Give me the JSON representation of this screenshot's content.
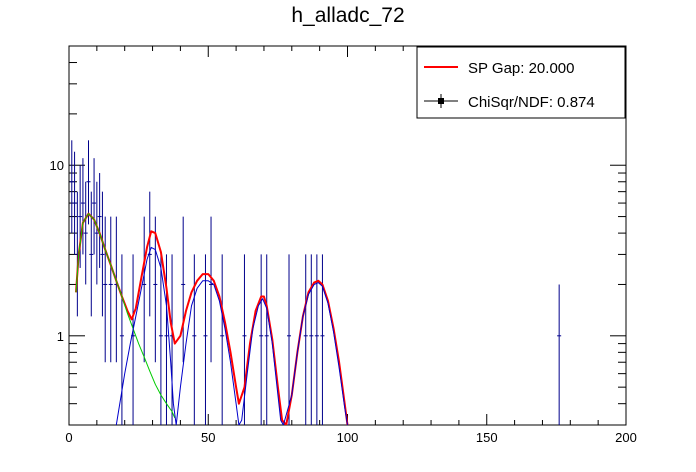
{
  "chart_data": {
    "type": "scatter",
    "title": "h_alladc_72",
    "xlabel": "",
    "ylabel": "",
    "xlim": [
      0,
      200
    ],
    "ylim": [
      0.3,
      50
    ],
    "yscale": "log",
    "x_ticks": [
      0,
      50,
      100,
      150,
      200
    ],
    "y_ticks": [
      {
        "value": 1,
        "label": "1"
      },
      {
        "value": 10,
        "label": "10"
      }
    ],
    "legend": {
      "position": "top-right",
      "entries": [
        {
          "label": "SP Gap: 20.000",
          "color": "#ff0000",
          "style": "line"
        },
        {
          "label": "ChiSqr/NDF: 0.874",
          "color": "#000000",
          "style": "marker-line"
        }
      ]
    },
    "histogram_points": [
      {
        "x": 1,
        "y": 8,
        "err_low": 4,
        "err_high": 14
      },
      {
        "x": 2,
        "y": 6,
        "err_low": 3,
        "err_high": 12
      },
      {
        "x": 3,
        "y": 3,
        "err_low": 1.3,
        "err_high": 7
      },
      {
        "x": 4,
        "y": 5,
        "err_low": 2.5,
        "err_high": 10
      },
      {
        "x": 5,
        "y": 6,
        "err_low": 3,
        "err_high": 11
      },
      {
        "x": 6,
        "y": 4,
        "err_low": 2,
        "err_high": 8
      },
      {
        "x": 7,
        "y": 8,
        "err_low": 4.5,
        "err_high": 14
      },
      {
        "x": 8,
        "y": 3,
        "err_low": 1.3,
        "err_high": 7
      },
      {
        "x": 9,
        "y": 6,
        "err_low": 3,
        "err_high": 11
      },
      {
        "x": 10,
        "y": 4,
        "err_low": 2,
        "err_high": 8
      },
      {
        "x": 11,
        "y": 5,
        "err_low": 2.5,
        "err_high": 9
      },
      {
        "x": 12,
        "y": 3,
        "err_low": 1.3,
        "err_high": 7
      },
      {
        "x": 13,
        "y": 2,
        "err_low": 0.7,
        "err_high": 5
      },
      {
        "x": 15,
        "y": 2,
        "err_low": 0.7,
        "err_high": 5
      },
      {
        "x": 17,
        "y": 2,
        "err_low": 0.7,
        "err_high": 5
      },
      {
        "x": 19,
        "y": 1,
        "err_low": 0.3,
        "err_high": 3
      },
      {
        "x": 23,
        "y": 1,
        "err_low": 0.3,
        "err_high": 3
      },
      {
        "x": 27,
        "y": 2,
        "err_low": 0.7,
        "err_high": 5
      },
      {
        "x": 29,
        "y": 3,
        "err_low": 1.3,
        "err_high": 7
      },
      {
        "x": 31,
        "y": 2,
        "err_low": 0.7,
        "err_high": 5
      },
      {
        "x": 33,
        "y": 1,
        "err_low": 0.3,
        "err_high": 3
      },
      {
        "x": 35,
        "y": 1,
        "err_low": 0.3,
        "err_high": 3
      },
      {
        "x": 37,
        "y": 1,
        "err_low": 0.3,
        "err_high": 3
      },
      {
        "x": 41,
        "y": 2,
        "err_low": 0.7,
        "err_high": 5
      },
      {
        "x": 45,
        "y": 1,
        "err_low": 0.3,
        "err_high": 3
      },
      {
        "x": 49,
        "y": 1,
        "err_low": 0.3,
        "err_high": 3
      },
      {
        "x": 51,
        "y": 2,
        "err_low": 0.7,
        "err_high": 5
      },
      {
        "x": 55,
        "y": 1,
        "err_low": 0.3,
        "err_high": 3
      },
      {
        "x": 63,
        "y": 1,
        "err_low": 0.3,
        "err_high": 3
      },
      {
        "x": 69,
        "y": 1,
        "err_low": 0.3,
        "err_high": 3
      },
      {
        "x": 71,
        "y": 1,
        "err_low": 0.3,
        "err_high": 3
      },
      {
        "x": 79,
        "y": 1,
        "err_low": 0.3,
        "err_high": 3
      },
      {
        "x": 85,
        "y": 1,
        "err_low": 0.3,
        "err_high": 3
      },
      {
        "x": 87,
        "y": 1,
        "err_low": 0.3,
        "err_high": 3
      },
      {
        "x": 89,
        "y": 1,
        "err_low": 0.3,
        "err_high": 3
      },
      {
        "x": 91,
        "y": 1,
        "err_low": 0.3,
        "err_high": 3
      },
      {
        "x": 176,
        "y": 1,
        "err_low": 0.3,
        "err_high": 2
      }
    ],
    "series": [
      {
        "color": "#ff0000",
        "points": [
          [
            2.5,
            1.8
          ],
          [
            3.5,
            3
          ],
          [
            5,
            4.6
          ],
          [
            7,
            5.2
          ],
          [
            9,
            4.8
          ],
          [
            11,
            4
          ],
          [
            13,
            3.2
          ],
          [
            15,
            2.6
          ],
          [
            17,
            2.1
          ],
          [
            19,
            1.7
          ],
          [
            21,
            1.4
          ],
          [
            22.5,
            1.25
          ],
          [
            24,
            1.45
          ],
          [
            26,
            2.2
          ],
          [
            28,
            3.3
          ],
          [
            29.5,
            4.1
          ],
          [
            31,
            4
          ],
          [
            33,
            3.1
          ],
          [
            35,
            1.9
          ],
          [
            36.5,
            1.2
          ],
          [
            38,
            0.9
          ],
          [
            40,
            1.0
          ],
          [
            42,
            1.4
          ],
          [
            44,
            1.8
          ],
          [
            46,
            2.1
          ],
          [
            48,
            2.3
          ],
          [
            50,
            2.3
          ],
          [
            52,
            2.1
          ],
          [
            54,
            1.7
          ],
          [
            56,
            1.2
          ],
          [
            58,
            0.8
          ],
          [
            60,
            0.5
          ],
          [
            61,
            0.4
          ],
          [
            63,
            0.5
          ],
          [
            65,
            0.9
          ],
          [
            67,
            1.4
          ],
          [
            69,
            1.7
          ],
          [
            70,
            1.7
          ],
          [
            71,
            1.5
          ],
          [
            73,
            0.95
          ],
          [
            75,
            0.5
          ],
          [
            76.5,
            0.32
          ],
          [
            78,
            0.3
          ],
          [
            80,
            0.45
          ],
          [
            82,
            0.8
          ],
          [
            84,
            1.3
          ],
          [
            86,
            1.8
          ],
          [
            88,
            2.05
          ],
          [
            89.5,
            2.1
          ],
          [
            91,
            2.0
          ],
          [
            93,
            1.6
          ],
          [
            95,
            1.1
          ],
          [
            97,
            0.7
          ],
          [
            99,
            0.4
          ],
          [
            100,
            0.3
          ]
        ]
      },
      {
        "color": "#00cc00",
        "points": [
          [
            2.5,
            1.8
          ],
          [
            3.5,
            3
          ],
          [
            5,
            4.6
          ],
          [
            7,
            5.2
          ],
          [
            9,
            4.8
          ],
          [
            11,
            4
          ],
          [
            13,
            3.2
          ],
          [
            15,
            2.6
          ],
          [
            17,
            2.1
          ],
          [
            19,
            1.7
          ],
          [
            21,
            1.35
          ],
          [
            23,
            1.1
          ],
          [
            25,
            0.9
          ],
          [
            27,
            0.75
          ],
          [
            29,
            0.62
          ],
          [
            31,
            0.52
          ],
          [
            33,
            0.45
          ],
          [
            35,
            0.4
          ],
          [
            37,
            0.36
          ],
          [
            38,
            0.33
          ]
        ]
      },
      {
        "color": "#0000cc",
        "points": [
          [
            17,
            0.3
          ],
          [
            20,
            0.6
          ],
          [
            22,
            0.9
          ],
          [
            24,
            1.3
          ],
          [
            26,
            1.9
          ],
          [
            28,
            2.8
          ],
          [
            29.5,
            3.3
          ],
          [
            31,
            3.2
          ],
          [
            33,
            2.5
          ],
          [
            35,
            1.5
          ],
          [
            36.5,
            0.7
          ],
          [
            37.5,
            0.4
          ],
          [
            38.5,
            0.3
          ],
          [
            40,
            0.5
          ],
          [
            42,
            0.9
          ],
          [
            44,
            1.5
          ],
          [
            46,
            1.9
          ],
          [
            48,
            2.1
          ],
          [
            50,
            2.1
          ],
          [
            52,
            2.0
          ],
          [
            54,
            1.6
          ],
          [
            56,
            1.1
          ],
          [
            58,
            0.7
          ],
          [
            60,
            0.4
          ],
          [
            61,
            0.3
          ],
          [
            62,
            0.32
          ],
          [
            64,
            0.6
          ],
          [
            66,
            1.1
          ],
          [
            68,
            1.5
          ],
          [
            69.5,
            1.65
          ],
          [
            71,
            1.45
          ],
          [
            73,
            0.9
          ],
          [
            75,
            0.45
          ],
          [
            76,
            0.32
          ],
          [
            77,
            0.3
          ],
          [
            80,
            0.45
          ],
          [
            82,
            0.8
          ],
          [
            84,
            1.3
          ],
          [
            86,
            1.75
          ],
          [
            88,
            2.0
          ],
          [
            89.5,
            2.05
          ],
          [
            91,
            1.95
          ],
          [
            93,
            1.55
          ],
          [
            95,
            1.05
          ],
          [
            97,
            0.65
          ],
          [
            99,
            0.38
          ],
          [
            100,
            0.3
          ]
        ]
      }
    ]
  }
}
